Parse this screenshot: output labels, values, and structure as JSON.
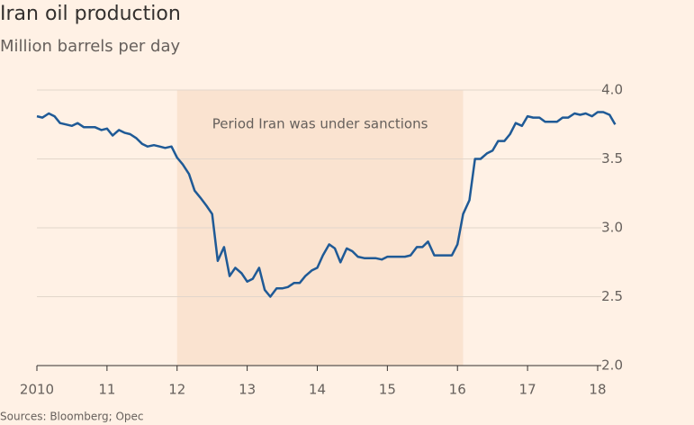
{
  "chart_data": {
    "type": "line",
    "title": "Iran oil production",
    "subtitle": "Million barrels per day",
    "source": "Sources: Bloomberg; Opec",
    "annotations": [
      {
        "text": "Period Iran was under sanctions",
        "x0": 2012,
        "x1": 2016.08,
        "color": "#fae3d0"
      }
    ],
    "x": [
      2010,
      2010.08,
      2010.17,
      2010.25,
      2010.33,
      2010.42,
      2010.5,
      2010.58,
      2010.67,
      2010.75,
      2010.83,
      2010.92,
      2011,
      2011.08,
      2011.17,
      2011.25,
      2011.33,
      2011.42,
      2011.5,
      2011.58,
      2011.67,
      2011.75,
      2011.83,
      2011.92,
      2012,
      2012.08,
      2012.17,
      2012.25,
      2012.33,
      2012.42,
      2012.5,
      2012.58,
      2012.67,
      2012.75,
      2012.83,
      2012.92,
      2013,
      2013.08,
      2013.17,
      2013.25,
      2013.33,
      2013.42,
      2013.5,
      2013.58,
      2013.67,
      2013.75,
      2013.83,
      2013.92,
      2014,
      2014.08,
      2014.17,
      2014.25,
      2014.33,
      2014.42,
      2014.5,
      2014.58,
      2014.67,
      2014.75,
      2014.83,
      2014.92,
      2015,
      2015.08,
      2015.17,
      2015.25,
      2015.33,
      2015.42,
      2015.5,
      2015.58,
      2015.67,
      2015.75,
      2015.83,
      2015.92,
      2016,
      2016.08,
      2016.17,
      2016.25,
      2016.33,
      2016.42,
      2016.5,
      2016.58,
      2016.67,
      2016.75,
      2016.83,
      2016.92,
      2017,
      2017.08,
      2017.17,
      2017.25,
      2017.33,
      2017.42,
      2017.5,
      2017.58,
      2017.67,
      2017.75,
      2017.83,
      2017.92,
      2018,
      2018.08,
      2018.17,
      2018.25
    ],
    "series": [
      {
        "name": "Iran oil production",
        "color": "#1f5a96",
        "values": [
          3.81,
          3.8,
          3.83,
          3.81,
          3.76,
          3.75,
          3.74,
          3.76,
          3.73,
          3.73,
          3.73,
          3.71,
          3.72,
          3.67,
          3.71,
          3.69,
          3.68,
          3.65,
          3.61,
          3.59,
          3.6,
          3.59,
          3.58,
          3.59,
          3.51,
          3.46,
          3.39,
          3.27,
          3.22,
          3.16,
          3.1,
          2.76,
          2.86,
          2.65,
          2.71,
          2.67,
          2.61,
          2.63,
          2.71,
          2.55,
          2.5,
          2.56,
          2.56,
          2.57,
          2.6,
          2.6,
          2.65,
          2.69,
          2.71,
          2.8,
          2.88,
          2.85,
          2.75,
          2.85,
          2.83,
          2.79,
          2.78,
          2.78,
          2.78,
          2.77,
          2.79,
          2.79,
          2.79,
          2.79,
          2.8,
          2.86,
          2.86,
          2.9,
          2.8,
          2.8,
          2.8,
          2.8,
          2.88,
          3.1,
          3.2,
          3.5,
          3.5,
          3.54,
          3.56,
          3.63,
          3.63,
          3.68,
          3.76,
          3.74,
          3.81,
          3.8,
          3.8,
          3.77,
          3.77,
          3.77,
          3.8,
          3.8,
          3.83,
          3.82,
          3.83,
          3.81,
          3.84,
          3.84,
          3.82,
          3.75
        ]
      }
    ],
    "xlim": [
      2010,
      2018.36
    ],
    "xticks": [
      {
        "value": 2010,
        "label": "2010"
      },
      {
        "value": 2011,
        "label": "11"
      },
      {
        "value": 2012,
        "label": "12"
      },
      {
        "value": 2013,
        "label": "13"
      },
      {
        "value": 2014,
        "label": "14"
      },
      {
        "value": 2015,
        "label": "15"
      },
      {
        "value": 2016,
        "label": "16"
      },
      {
        "value": 2017,
        "label": "17"
      },
      {
        "value": 2018,
        "label": "18"
      }
    ],
    "ylim": [
      2,
      4
    ],
    "yticks": [
      {
        "value": 2,
        "label": "2.0"
      },
      2.5,
      {
        "value": 3,
        "label": "3.0"
      },
      3.5,
      {
        "value": 4,
        "label": "4.0"
      }
    ],
    "grid": true
  }
}
